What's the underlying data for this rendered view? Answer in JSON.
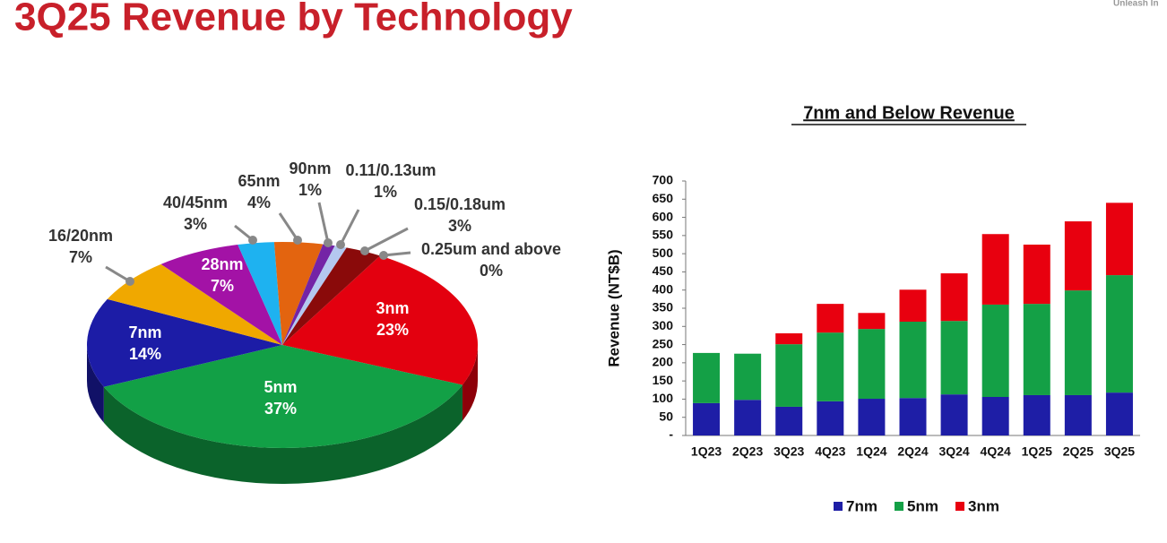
{
  "page_title": "3Q25 Revenue by Technology",
  "corner_text": "Unleash In",
  "chart_data": [
    {
      "type": "pie",
      "categories": [
        "3nm",
        "5nm",
        "7nm",
        "16/20nm",
        "28nm",
        "40/45nm",
        "65nm",
        "90nm",
        "0.11/0.13um",
        "0.15/0.18um",
        "0.25um and above"
      ],
      "values": [
        23,
        37,
        14,
        7,
        7,
        3,
        4,
        1,
        1,
        3,
        0
      ],
      "value_labels": [
        "23%",
        "37%",
        "14%",
        "7%",
        "7%",
        "3%",
        "4%",
        "1%",
        "1%",
        "3%",
        "0%"
      ],
      "colors": [
        "#e3000f",
        "#12a046",
        "#1c1ca6",
        "#f0a800",
        "#a312a6",
        "#1eb2f0",
        "#e3640f",
        "#7424a6",
        "#b4c8f0",
        "#8a0a0a",
        "#a0a0a0"
      ]
    },
    {
      "type": "bar",
      "title": "7nm and Below Revenue",
      "y_label": "Revenue (NT$B)",
      "categories": [
        "1Q23",
        "2Q23",
        "3Q23",
        "4Q23",
        "1Q24",
        "2Q24",
        "3Q24",
        "4Q24",
        "1Q25",
        "2Q25",
        "3Q25"
      ],
      "series": [
        {
          "name": "7nm",
          "color": "#1e1ea6",
          "values": [
            89,
            98,
            79,
            94,
            101,
            103,
            113,
            106,
            111,
            111,
            118
          ]
        },
        {
          "name": "5nm",
          "color": "#14a046",
          "values": [
            138,
            127,
            172,
            189,
            192,
            210,
            202,
            254,
            251,
            288,
            323
          ]
        },
        {
          "name": "3nm",
          "color": "#e8000f",
          "values": [
            0,
            0,
            30,
            79,
            44,
            88,
            131,
            194,
            163,
            190,
            199
          ]
        }
      ],
      "ylim": [
        0,
        700
      ],
      "yticks": [
        {
          "value": 0,
          "label": "-"
        },
        50,
        100,
        150,
        200,
        250,
        300,
        350,
        400,
        450,
        500,
        550,
        600,
        650,
        700
      ],
      "grid": false,
      "legend": "bottom"
    }
  ]
}
